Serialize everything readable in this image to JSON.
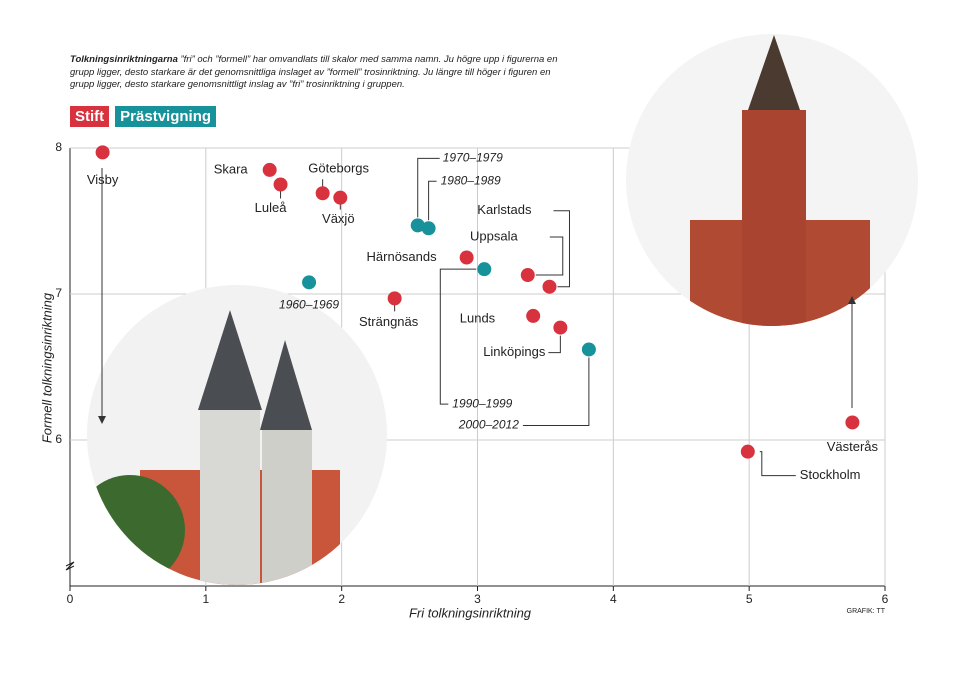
{
  "chart_data": {
    "type": "scatter",
    "intro_bold": "Tolkningsinriktningarna",
    "intro": " ”fri” och ”formell” har omvandlats till skalor med samma namn. Ju högre upp i figurerna en grupp ligger, desto starkare är det genomsnittliga inslaget av ”formell” trosinriktning. Ju längre till höger i figuren en grupp ligger, desto starkare genomsnittligt inslag av ”fri” trosinriktning i gruppen.",
    "xlabel": "Fri tolkningsinriktning",
    "ylabel": "Formell tolkningsinriktning",
    "credit": "GRAFIK: TT",
    "xlim": [
      0,
      6
    ],
    "xticks": [
      0,
      1,
      2,
      3,
      4,
      5,
      6
    ],
    "ylim": [
      5,
      8
    ],
    "yticks": [
      6,
      7,
      8
    ],
    "grid": true,
    "series": [
      {
        "name": "Stift",
        "color": "#d8323f",
        "labels": [
          "Visby",
          "Skara",
          "Luleå",
          "Göteborgs",
          "Växjö",
          "Härnösands",
          "Strängnäs",
          "Uppsala",
          "Karlstads",
          "Lunds",
          "Linköpings",
          "Västerås",
          "Stockholm"
        ],
        "x": [
          0.24,
          1.47,
          1.55,
          1.86,
          1.99,
          2.92,
          2.39,
          3.37,
          3.53,
          3.41,
          3.61,
          5.76,
          4.99
        ],
        "values": [
          7.97,
          7.85,
          7.75,
          7.69,
          7.66,
          7.25,
          6.97,
          7.13,
          7.05,
          6.85,
          6.77,
          6.12,
          5.92
        ]
      },
      {
        "name": "Prästvigning",
        "color": "#17929a",
        "labels": [
          "1970–1979",
          "1980–1989",
          "1960–1969",
          "1990–1999",
          "2000–2012"
        ],
        "x": [
          2.56,
          2.64,
          1.76,
          3.05,
          3.82
        ],
        "values": [
          7.47,
          7.45,
          7.08,
          7.17,
          6.62
        ]
      }
    ]
  }
}
